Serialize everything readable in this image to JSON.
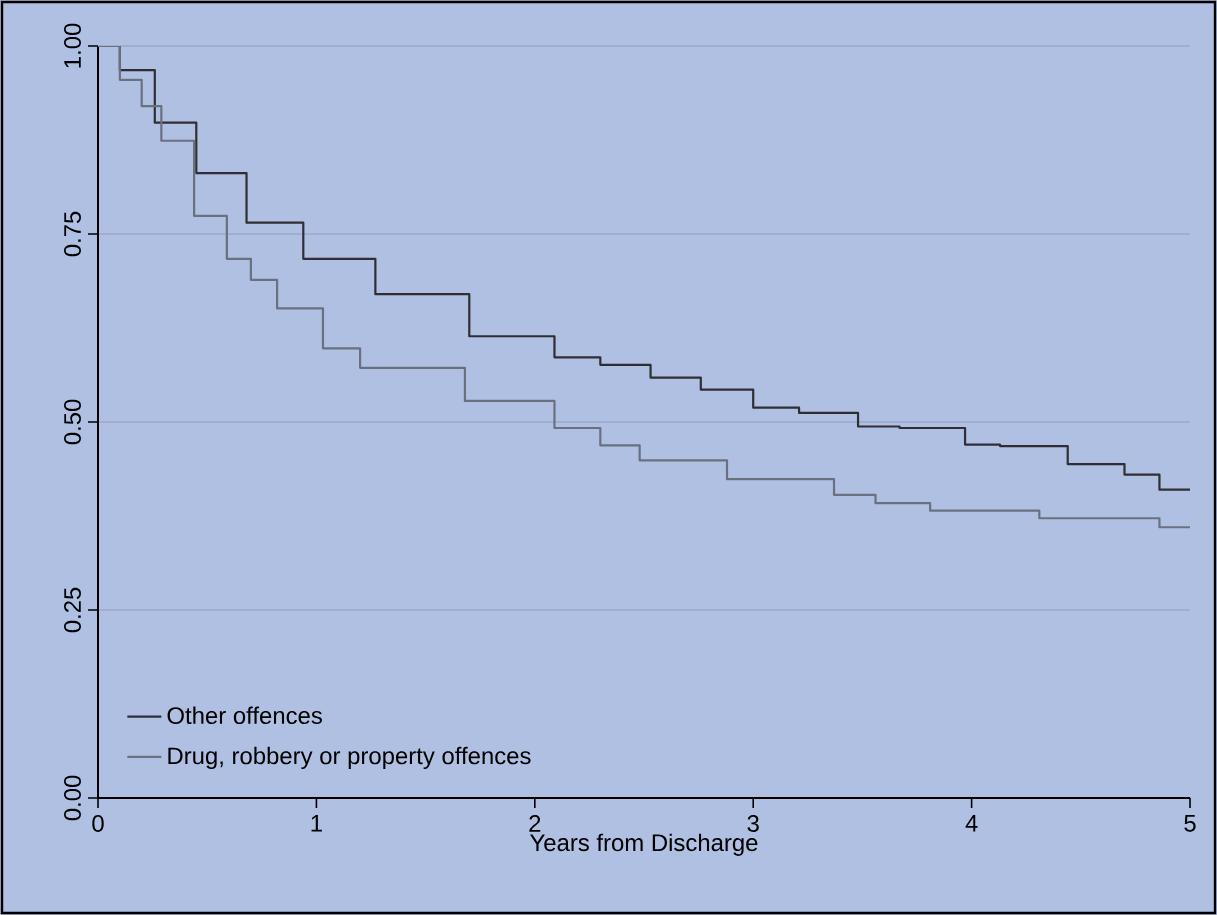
{
  "chart_data": {
    "type": "step",
    "xlabel": "Years from Discharge",
    "xlim": [
      0,
      5
    ],
    "ylim": [
      0,
      1
    ],
    "xticks": [
      0,
      1,
      2,
      3,
      4,
      5
    ],
    "yticks": [
      {
        "value": 0,
        "label": "0.00"
      },
      {
        "value": 0.25,
        "label": "0.25"
      },
      {
        "value": 0.5,
        "label": "0.50"
      },
      {
        "value": 0.75,
        "label": "0.75"
      },
      {
        "value": 1,
        "label": "1.00"
      }
    ],
    "grid": "y",
    "legend": "bottom left",
    "line_style": "solid",
    "marker": "none",
    "series": [
      {
        "name": "Other offences",
        "color": "#2f2f33",
        "x": [
          0,
          0.1,
          0.26,
          0.45,
          0.68,
          0.94,
          1.27,
          1.7,
          2.09,
          2.3,
          2.53,
          2.76,
          3.0,
          3.21,
          3.48,
          3.67,
          3.97,
          4.13,
          4.44,
          4.7,
          4.86,
          5.0
        ],
        "values": [
          1.0,
          0.968,
          0.898,
          0.831,
          0.765,
          0.717,
          0.67,
          0.614,
          0.586,
          0.576,
          0.559,
          0.543,
          0.519,
          0.512,
          0.494,
          0.492,
          0.47,
          0.468,
          0.444,
          0.43,
          0.41,
          0.41
        ]
      },
      {
        "name": "Drug, robbery or property offences",
        "color": "#6b7080",
        "x": [
          0,
          0.1,
          0.2,
          0.29,
          0.44,
          0.59,
          0.7,
          0.82,
          1.03,
          1.2,
          1.68,
          2.09,
          2.3,
          2.48,
          2.88,
          3.37,
          3.56,
          3.81,
          4.31,
          4.86,
          5.0
        ],
        "values": [
          1.0,
          0.955,
          0.92,
          0.874,
          0.774,
          0.717,
          0.689,
          0.651,
          0.598,
          0.572,
          0.528,
          0.492,
          0.469,
          0.449,
          0.424,
          0.403,
          0.392,
          0.382,
          0.372,
          0.36,
          0.36
        ]
      }
    ]
  }
}
